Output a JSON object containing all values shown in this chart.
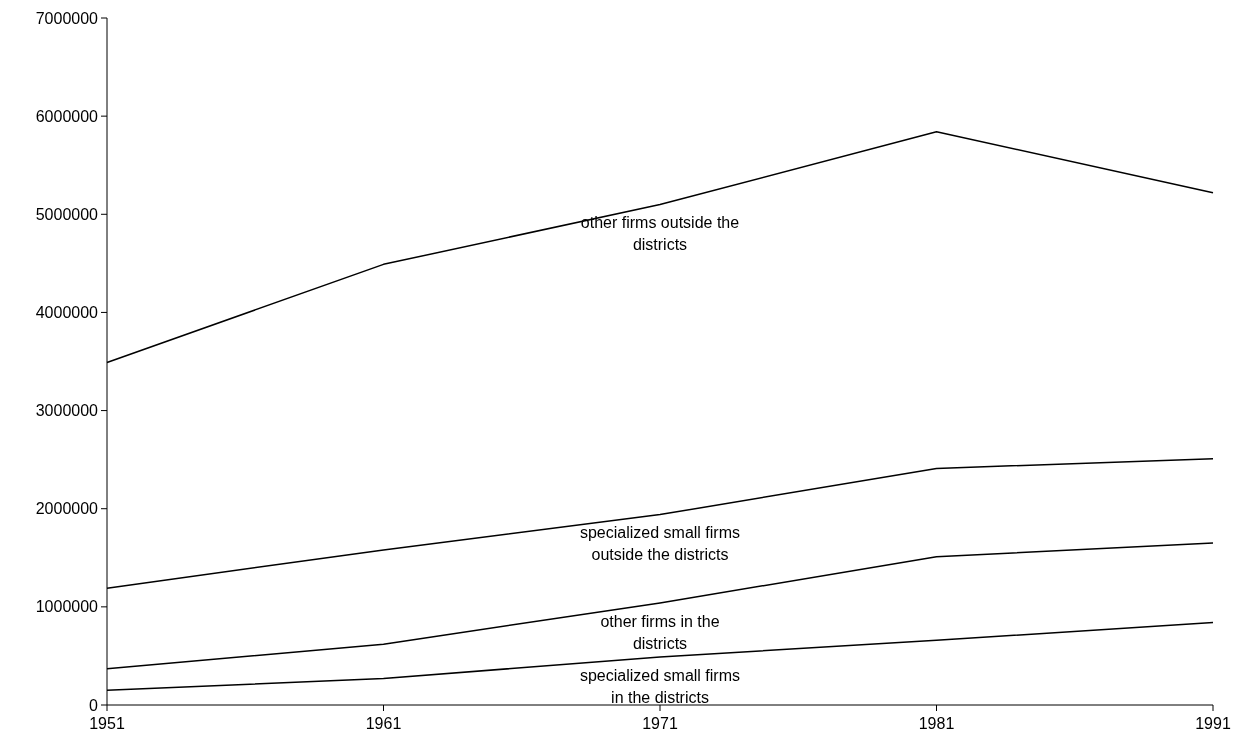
{
  "chart_data": {
    "type": "line",
    "x": [
      1951,
      1961,
      1971,
      1981,
      1991
    ],
    "xlim": [
      1951,
      1991
    ],
    "xticks": [
      1951,
      1961,
      1971,
      1981,
      1991
    ],
    "ylim": [
      0,
      7000000
    ],
    "yticks": [
      0,
      1000000,
      2000000,
      3000000,
      4000000,
      5000000,
      6000000,
      7000000
    ],
    "grid": false,
    "marker": "none",
    "line_style": "solid",
    "series": [
      {
        "name": "specialized small firms in the districts",
        "color": "#000000",
        "values": [
          150000,
          270000,
          490000,
          660000,
          840000
        ]
      },
      {
        "name": "other firms in the districts",
        "color": "#000000",
        "values": [
          370000,
          620000,
          1040000,
          1510000,
          1650000
        ]
      },
      {
        "name": "specialized small firms outside the districts",
        "color": "#000000",
        "values": [
          1190000,
          1580000,
          1940000,
          2410000,
          2510000
        ]
      },
      {
        "name": "other firms outside the districts",
        "color": "#000000",
        "values": [
          3490000,
          4490000,
          5100000,
          5840000,
          5220000
        ]
      }
    ]
  }
}
